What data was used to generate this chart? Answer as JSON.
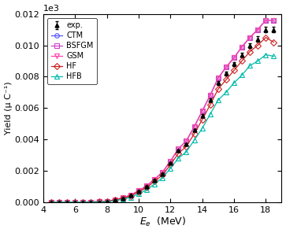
{
  "x": [
    4.5,
    5.0,
    5.5,
    6.0,
    6.5,
    7.0,
    7.5,
    8.0,
    8.5,
    9.0,
    9.5,
    10.0,
    10.5,
    11.0,
    11.5,
    12.0,
    12.5,
    13.0,
    13.5,
    14.0,
    14.5,
    15.0,
    15.5,
    16.0,
    16.5,
    17.0,
    17.5,
    18.0,
    18.5
  ],
  "exp": [
    0,
    0,
    0,
    0,
    0,
    5,
    10,
    50,
    130,
    260,
    420,
    700,
    1000,
    1400,
    1800,
    2500,
    3300,
    3700,
    4600,
    5500,
    6500,
    7600,
    8200,
    8800,
    9400,
    10000,
    10400,
    11000,
    11000
  ],
  "CTM": [
    0,
    0,
    0,
    0,
    5,
    10,
    20,
    55,
    140,
    270,
    440,
    720,
    1020,
    1450,
    1900,
    2600,
    3400,
    3900,
    4800,
    5800,
    6800,
    7900,
    8600,
    9200,
    9900,
    10500,
    11000,
    11600,
    11600
  ],
  "BSFGM": [
    0,
    0,
    0,
    0,
    5,
    10,
    20,
    55,
    140,
    270,
    440,
    720,
    1020,
    1450,
    1900,
    2600,
    3400,
    3900,
    4800,
    5800,
    6800,
    7900,
    8600,
    9200,
    9900,
    10500,
    11000,
    11600,
    11600
  ],
  "GSM": [
    0,
    0,
    0,
    0,
    5,
    10,
    20,
    55,
    140,
    270,
    440,
    720,
    1020,
    1450,
    1900,
    2600,
    3400,
    3900,
    4800,
    5800,
    6800,
    7900,
    8600,
    9200,
    9900,
    10500,
    11000,
    11600,
    11600
  ],
  "HF": [
    0,
    0,
    0,
    0,
    5,
    8,
    15,
    45,
    120,
    240,
    390,
    650,
    920,
    1320,
    1720,
    2380,
    3100,
    3550,
    4350,
    5250,
    6200,
    7200,
    7800,
    8400,
    9000,
    9600,
    10000,
    10500,
    10200
  ],
  "HFB": [
    0,
    0,
    0,
    0,
    0,
    3,
    8,
    25,
    80,
    180,
    310,
    530,
    780,
    1150,
    1550,
    2150,
    2800,
    3200,
    3950,
    4700,
    5600,
    6500,
    7000,
    7600,
    8100,
    8700,
    9000,
    9400,
    9300
  ],
  "exp_err": [
    0,
    0,
    0,
    0,
    0,
    3,
    5,
    10,
    15,
    20,
    25,
    30,
    35,
    40,
    45,
    55,
    65,
    70,
    80,
    90,
    100,
    110,
    120,
    130,
    140,
    150,
    160,
    170,
    175
  ],
  "xlabel_unit": "(MeV)",
  "ylabel": "Yield (μ C⁻¹)",
  "ylim": [
    0,
    12000
  ],
  "xlim": [
    4.0,
    19.0
  ],
  "scale_factor": 1000,
  "colors": {
    "exp": "#000000",
    "CTM": "#5555ff",
    "BSFGM": "#cc44cc",
    "GSM": "#ff44aa",
    "HF": "#cc2222",
    "HFB": "#00bbaa"
  },
  "xticks": [
    4,
    6,
    8,
    10,
    12,
    14,
    16,
    18
  ],
  "yticks": [
    0,
    2,
    4,
    6,
    8,
    10,
    12
  ]
}
